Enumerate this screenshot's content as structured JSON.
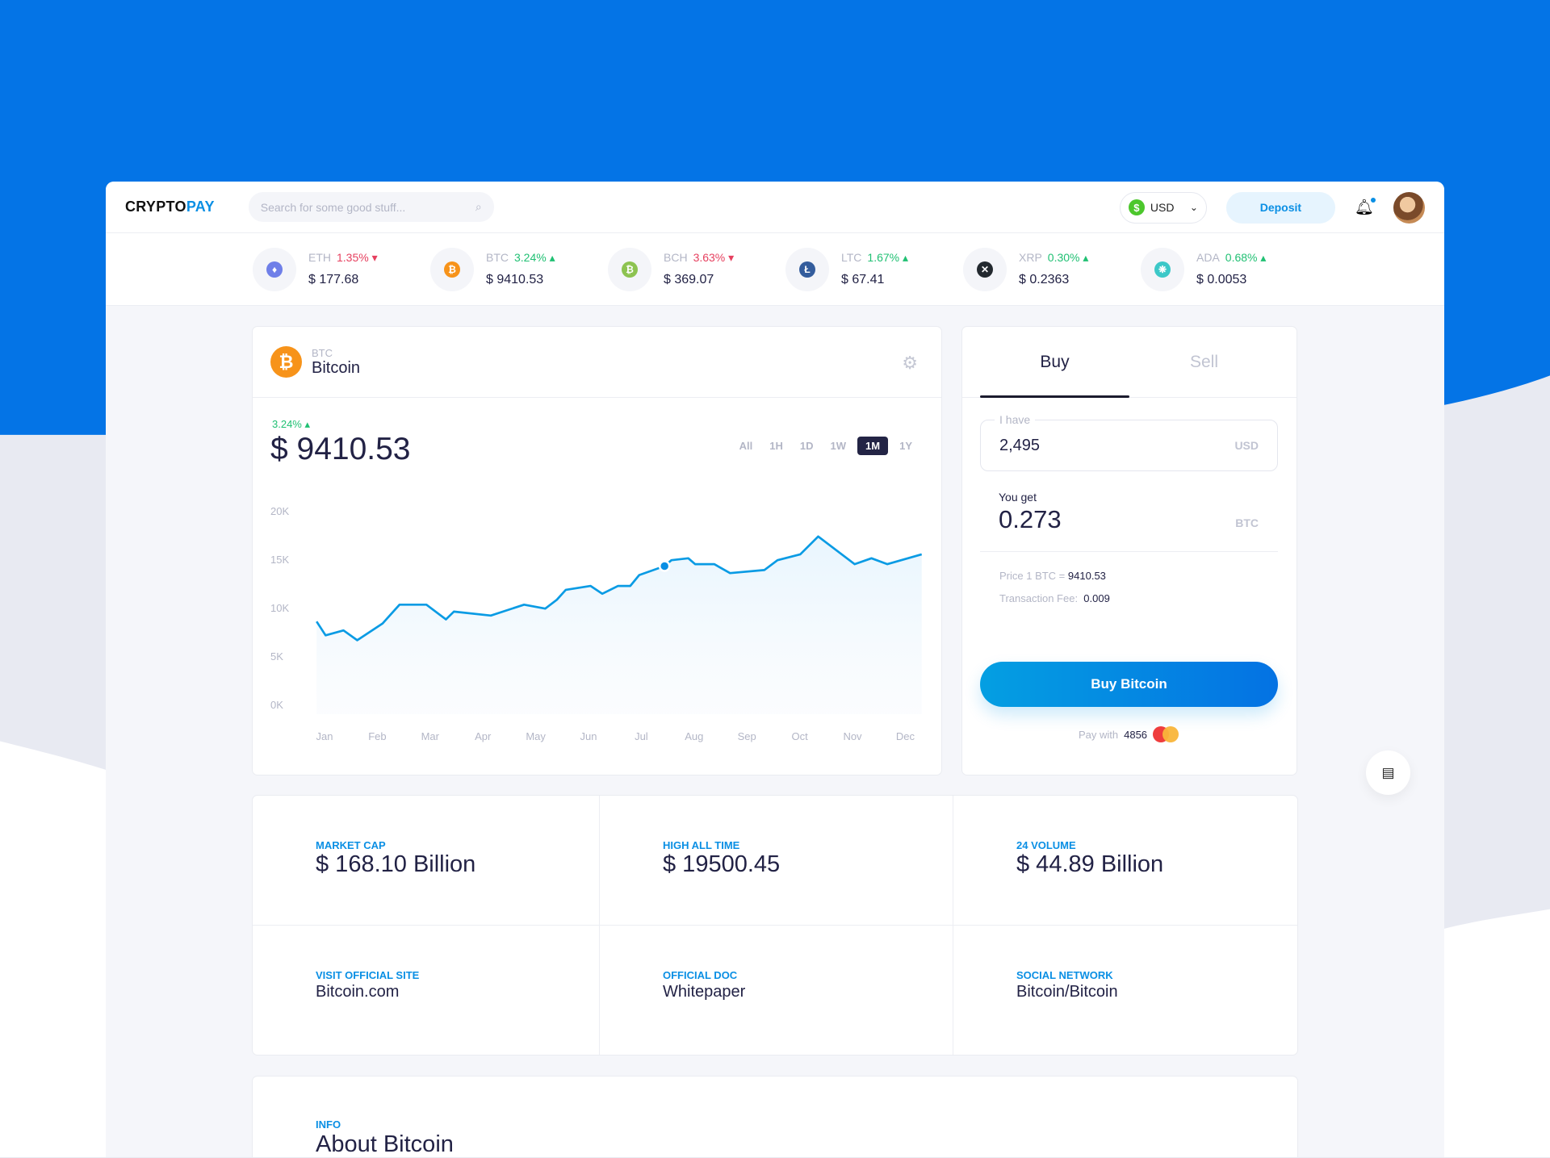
{
  "header": {
    "logo_part1": "CRYPTO",
    "logo_part2": "PAY",
    "search_placeholder": "Search for some good stuff...",
    "currency": "USD",
    "deposit_label": "Deposit"
  },
  "ticker": [
    {
      "symbol": "ETH",
      "change": "1.35%",
      "direction": "down",
      "price": "$ 177.68",
      "color": "#6f7fe8",
      "glyph": "♦"
    },
    {
      "symbol": "BTC",
      "change": "3.24%",
      "direction": "up",
      "price": "$ 9410.53",
      "color": "#f7931a",
      "glyph": "₿"
    },
    {
      "symbol": "BCH",
      "change": "3.63%",
      "direction": "down",
      "price": "$ 369.07",
      "color": "#8dc351",
      "glyph": "₿"
    },
    {
      "symbol": "LTC",
      "change": "1.67%",
      "direction": "up",
      "price": "$ 67.41",
      "color": "#345d9d",
      "glyph": "Ł"
    },
    {
      "symbol": "XRP",
      "change": "0.30%",
      "direction": "up",
      "price": "$ 0.2363",
      "color": "#23292f",
      "glyph": "✕"
    },
    {
      "symbol": "ADA",
      "change": "0.68%",
      "direction": "up",
      "price": "$ 0.0053",
      "color": "#3cc8c8",
      "glyph": "❋"
    }
  ],
  "coin": {
    "symbol": "BTC",
    "name": "Bitcoin",
    "change": "3.24%",
    "price": "$ 9410.53"
  },
  "ranges": [
    "All",
    "1H",
    "1D",
    "1W",
    "1M",
    "1Y"
  ],
  "active_range": "1M",
  "chart_data": {
    "type": "area",
    "x_tick_labels": [
      "Jan",
      "Feb",
      "Mar",
      "Apr",
      "May",
      "Jun",
      "Jul",
      "Aug",
      "Sep",
      "Oct",
      "Nov",
      "Dec"
    ],
    "y_tick_labels": [
      "20K",
      "15K",
      "10K",
      "5K",
      "0K"
    ],
    "ylim": [
      0,
      20000
    ],
    "line_color": "#0a9be4",
    "x_unit": "month index (0 = Jan)",
    "points": [
      [
        -0.15,
        8570
      ],
      [
        0.02,
        7140
      ],
      [
        0.36,
        7650
      ],
      [
        0.62,
        6630
      ],
      [
        1.1,
        8370
      ],
      [
        1.42,
        10310
      ],
      [
        1.93,
        10310
      ],
      [
        2.3,
        8780
      ],
      [
        2.45,
        9590
      ],
      [
        3.15,
        9180
      ],
      [
        3.78,
        10310
      ],
      [
        4.18,
        9900
      ],
      [
        4.4,
        10820
      ],
      [
        4.57,
        11840
      ],
      [
        5.04,
        12240
      ],
      [
        5.26,
        11430
      ],
      [
        5.56,
        12240
      ],
      [
        5.79,
        12240
      ],
      [
        5.96,
        13370
      ],
      [
        6.44,
        14290
      ],
      [
        6.57,
        14900
      ],
      [
        6.89,
        15100
      ],
      [
        7.02,
        14490
      ],
      [
        7.38,
        14490
      ],
      [
        7.68,
        13570
      ],
      [
        8.33,
        13880
      ],
      [
        8.58,
        14900
      ],
      [
        9.01,
        15510
      ],
      [
        9.35,
        17350
      ],
      [
        10.04,
        14490
      ],
      [
        10.36,
        15100
      ],
      [
        10.66,
        14490
      ],
      [
        11.31,
        15510
      ]
    ],
    "highlighted_point": [
      6.44,
      14290
    ]
  },
  "trade": {
    "tab_buy": "Buy",
    "tab_sell": "Sell",
    "have_label": "I have",
    "have_value": "2,495",
    "have_unit": "USD",
    "get_label": "You get",
    "get_value": "0.273",
    "get_unit": "BTC",
    "price_label": "Price 1 BTC =",
    "price_value": "9410.53",
    "fee_label": "Transaction Fee:",
    "fee_value": "0.009",
    "buy_label": "Buy Bitcoin",
    "pay_label": "Pay with",
    "card_last": "4856"
  },
  "stats": [
    {
      "label": "MARKET CAP",
      "value": "$ 168.10 Billion"
    },
    {
      "label": "HIGH ALL TIME",
      "value": "$ 19500.45"
    },
    {
      "label": "24 VOLUME",
      "value": "$ 44.89 Billion"
    },
    {
      "label": "VISIT OFFICIAL SITE",
      "value": "Bitcoin.com"
    },
    {
      "label": "OFFICIAL DOC",
      "value": "Whitepaper"
    },
    {
      "label": "SOCIAL NETWORK",
      "value": "Bitcoin/Bitcoin"
    }
  ],
  "about": {
    "label": "INFO",
    "title": "About Bitcoin"
  }
}
